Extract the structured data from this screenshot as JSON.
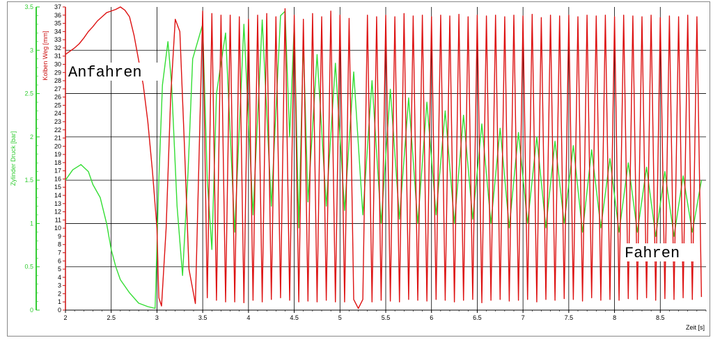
{
  "chart_data": {
    "type": "line",
    "title": "",
    "xlabel": "Zeit [s]",
    "ylabel_left": "Zylinder Druck [bar]",
    "ylabel_right": "Kolben Weg [mm]",
    "xlim": [
      2,
      9
    ],
    "ylim_left": [
      0,
      3.5
    ],
    "ylim_right": [
      0,
      37
    ],
    "grid": true,
    "x_ticks": [
      "2",
      "2.5",
      "3",
      "3.5",
      "4",
      "4.5",
      "5",
      "5.5",
      "6",
      "6.5",
      "7",
      "7.5",
      "8",
      "8.5"
    ],
    "y_left_ticks": [
      "0",
      "0.5",
      "1",
      "1.5",
      "2",
      "2.5",
      "3",
      "3.5"
    ],
    "y_right_ticks": [
      "0",
      "1",
      "2",
      "3",
      "4",
      "5",
      "6",
      "7",
      "8",
      "9",
      "10",
      "11",
      "12",
      "13",
      "14",
      "15",
      "16",
      "17",
      "18",
      "19",
      "20",
      "21",
      "22",
      "23",
      "24",
      "25",
      "26",
      "27",
      "28",
      "29",
      "30",
      "31",
      "32",
      "33",
      "34",
      "35",
      "36",
      "37"
    ],
    "annotations": [
      "Anfahren",
      "Fahren"
    ],
    "colors": {
      "pressure": "#33dd33",
      "position": "#dd1111",
      "grid": "#000000",
      "axis_left": "#33cc33",
      "axis_right": "#cc1111"
    },
    "series": [
      {
        "axis": "left",
        "x": [
          2.0,
          2.08,
          2.17,
          2.25,
          2.3,
          2.38,
          2.45,
          2.5,
          2.55,
          2.6,
          2.7,
          2.8,
          2.9,
          2.98,
          3.02,
          3.06,
          3.12,
          3.16,
          3.22,
          3.28,
          3.34,
          3.39,
          3.5,
          3.55,
          3.6,
          3.65,
          3.75,
          3.85,
          3.95,
          4.05,
          4.15,
          4.25,
          4.35,
          4.4,
          4.45,
          4.5,
          4.55,
          4.6,
          4.65,
          4.75,
          4.85,
          4.95,
          5.05,
          5.15,
          5.25,
          5.35,
          5.45,
          5.55,
          5.65,
          5.75,
          5.85,
          5.95,
          6.05,
          6.15,
          6.25,
          6.35,
          6.45,
          6.55,
          6.65,
          6.75,
          6.85,
          6.95,
          7.05,
          7.15,
          7.25,
          7.35,
          7.45,
          7.55,
          7.65,
          7.75,
          7.85,
          7.95,
          8.05,
          8.15,
          8.25,
          8.35,
          8.45,
          8.55,
          8.65,
          8.75,
          8.85,
          8.95
        ],
        "y": [
          1.5,
          1.62,
          1.68,
          1.6,
          1.45,
          1.3,
          1.0,
          0.7,
          0.5,
          0.35,
          0.2,
          0.08,
          0.04,
          0.02,
          1.5,
          2.6,
          3.1,
          2.6,
          1.2,
          0.4,
          1.6,
          2.9,
          3.3,
          1.5,
          0.7,
          2.5,
          3.2,
          0.9,
          3.3,
          1.1,
          3.35,
          1.2,
          3.4,
          3.45,
          2.0,
          3.3,
          0.95,
          3.1,
          1.25,
          2.95,
          1.2,
          2.85,
          1.15,
          2.75,
          1.1,
          2.65,
          1.0,
          2.55,
          1.05,
          2.45,
          1.0,
          2.4,
          1.1,
          2.3,
          1.0,
          2.25,
          1.05,
          2.15,
          1.0,
          2.1,
          0.95,
          2.05,
          1.0,
          2.0,
          0.95,
          1.95,
          1.0,
          1.9,
          0.9,
          1.85,
          0.95,
          1.75,
          0.9,
          1.7,
          0.9,
          1.65,
          0.85,
          1.6,
          0.85,
          1.55,
          0.9,
          1.5
        ]
      },
      {
        "axis": "right",
        "x": [
          2.0,
          2.05,
          2.1,
          2.15,
          2.2,
          2.25,
          2.3,
          2.35,
          2.4,
          2.45,
          2.5,
          2.55,
          2.6,
          2.65,
          2.7,
          2.75,
          2.8,
          2.85,
          2.9,
          2.95,
          3.0,
          3.02,
          3.05,
          3.1,
          3.15,
          3.2,
          3.25,
          3.3,
          3.35,
          3.42,
          3.5,
          3.55,
          3.6,
          3.65,
          3.7,
          3.75,
          3.8,
          3.85,
          3.9,
          3.95,
          4.0,
          4.05,
          4.1,
          4.15,
          4.2,
          4.25,
          4.3,
          4.35,
          4.4,
          4.45,
          4.5,
          4.55,
          4.6,
          4.65,
          4.7,
          4.75,
          4.8,
          4.85,
          4.9,
          4.95,
          5.0,
          5.05,
          5.1,
          5.15,
          5.2,
          5.25,
          5.3,
          5.35,
          5.4,
          5.45,
          5.5,
          5.55,
          5.6,
          5.65,
          5.7,
          5.75,
          5.8,
          5.85,
          5.9,
          5.95,
          6.0,
          6.05,
          6.1,
          6.15,
          6.2,
          6.25,
          6.3,
          6.35,
          6.4,
          6.45,
          6.5,
          6.55,
          6.6,
          6.65,
          6.7,
          6.75,
          6.8,
          6.85,
          6.9,
          6.95,
          7.0,
          7.05,
          7.1,
          7.15,
          7.2,
          7.25,
          7.3,
          7.35,
          7.4,
          7.45,
          7.5,
          7.55,
          7.6,
          7.65,
          7.7,
          7.75,
          7.8,
          7.85,
          7.9,
          7.95,
          8.0,
          8.05,
          8.1,
          8.15,
          8.2,
          8.25,
          8.3,
          8.35,
          8.4,
          8.45,
          8.5,
          8.55,
          8.6,
          8.65,
          8.7,
          8.75,
          8.8,
          8.85,
          8.9,
          8.95
        ],
        "y": [
          31.2,
          31.6,
          32.0,
          32.5,
          33.2,
          34.0,
          34.6,
          35.3,
          35.8,
          36.3,
          36.5,
          36.7,
          37.0,
          36.6,
          35.8,
          33.5,
          30.5,
          27.5,
          23.0,
          17.0,
          10.0,
          1.5,
          0.5,
          10.0,
          26.0,
          35.5,
          34.0,
          20.0,
          5.0,
          0.8,
          36.5,
          1.5,
          36.2,
          1.2,
          36.0,
          1.0,
          36.0,
          1.0,
          35.8,
          0.9,
          35.5,
          1.2,
          36.0,
          1.0,
          36.2,
          1.3,
          35.8,
          1.5,
          36.8,
          1.2,
          36.0,
          1.0,
          35.5,
          1.1,
          36.2,
          1.0,
          35.8,
          1.2,
          36.5,
          1.0,
          36.0,
          1.0,
          35.6,
          1.3,
          0.2,
          1.3,
          36.0,
          1.0,
          35.8,
          1.2,
          36.0,
          1.1,
          35.8,
          1.0,
          36.2,
          1.3,
          35.9,
          1.2,
          36.0,
          1.1,
          35.8,
          1.3,
          36.0,
          1.2,
          35.9,
          1.0,
          36.1,
          1.2,
          35.8,
          1.3,
          36.0,
          0.9,
          35.9,
          1.2,
          36.0,
          1.3,
          35.8,
          1.1,
          36.0,
          1.2,
          35.9,
          1.3,
          36.1,
          1.0,
          35.7,
          1.3,
          36.0,
          1.2,
          35.9,
          1.4,
          36.0,
          1.3,
          35.8,
          1.1,
          36.0,
          1.5,
          35.9,
          1.2,
          36.0,
          1.3,
          35.8,
          1.2,
          36.0,
          1.4,
          35.9,
          1.3,
          35.8,
          1.5,
          36.0,
          1.2,
          35.7,
          1.4,
          35.9,
          1.3,
          35.8,
          1.5,
          36.0,
          1.3,
          35.8,
          1.6
        ]
      }
    ]
  }
}
